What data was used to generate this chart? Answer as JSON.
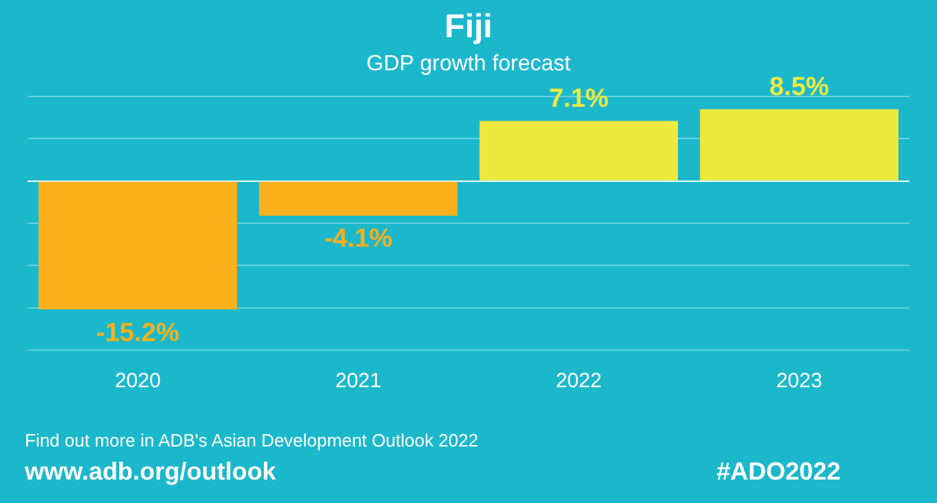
{
  "chart_data": {
    "type": "bar",
    "title": "Fiji",
    "subtitle": "GDP growth forecast",
    "categories": [
      "2020",
      "2021",
      "2022",
      "2023"
    ],
    "values": [
      -15.2,
      -4.1,
      7.1,
      8.5
    ],
    "colors": [
      "#f9b01a",
      "#f9b01a",
      "#eee93e",
      "#eee93e"
    ],
    "value_labels": [
      "-15.2%",
      "-4.1%",
      "7.1%",
      "8.5%"
    ],
    "ylim": [
      -20,
      10
    ],
    "yticks": [
      {
        "value": -20,
        "label": null
      },
      {
        "value": -15,
        "label": null
      },
      {
        "value": -10,
        "label": null
      },
      {
        "value": -5,
        "label": null
      },
      {
        "value": 0,
        "label": null
      },
      {
        "value": 5,
        "label": null
      },
      {
        "value": 10,
        "label": null
      }
    ],
    "tick_labels": "x",
    "grid": "y",
    "legend": false,
    "annotations": [
      "Find out more in ADB's Asian Development Outlook 2022",
      "www.adb.org/outlook",
      "#ADO2022"
    ]
  }
}
